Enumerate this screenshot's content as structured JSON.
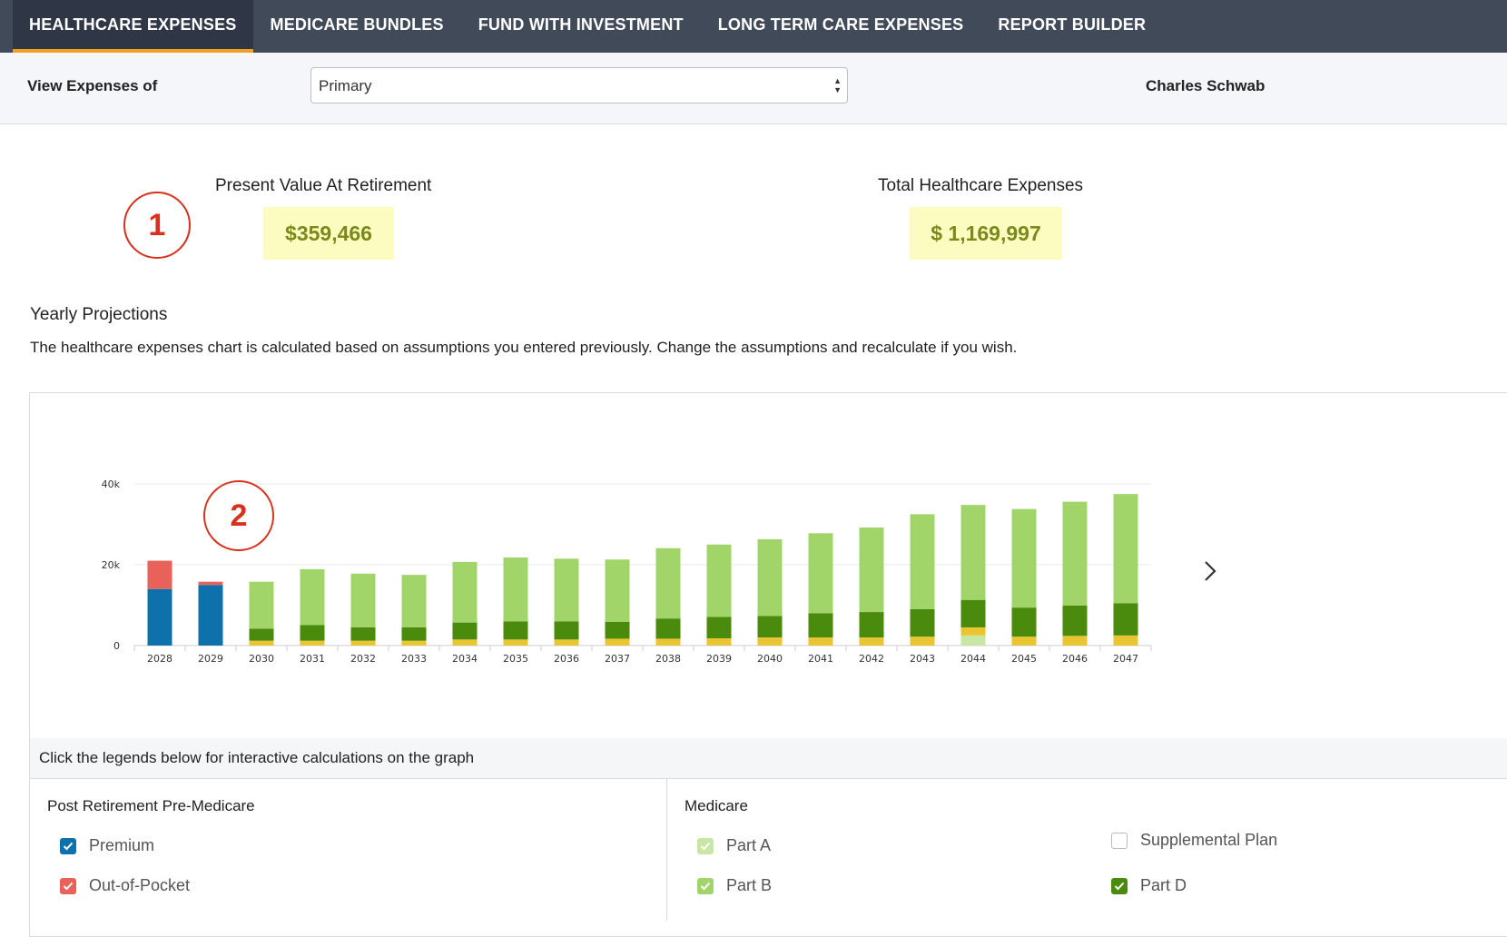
{
  "nav": {
    "tabs": [
      {
        "label": "HEALTHCARE EXPENSES",
        "active": true
      },
      {
        "label": "MEDICARE BUNDLES",
        "active": false
      },
      {
        "label": "FUND WITH INVESTMENT",
        "active": false
      },
      {
        "label": "LONG TERM CARE EXPENSES",
        "active": false
      },
      {
        "label": "REPORT BUILDER",
        "active": false
      }
    ]
  },
  "filter": {
    "label": "View Expenses of",
    "selected": "Primary",
    "company": "Charles Schwab"
  },
  "summary": {
    "badge1": "1",
    "badge2": "2",
    "present_value_title": "Present Value At Retirement",
    "present_value": "$359,466",
    "total_title": "Total Healthcare Expenses",
    "total_value": "$ 1,169,997"
  },
  "section": {
    "title": "Yearly Projections",
    "description": "The healthcare expenses chart is calculated based on assumptions you entered previously. Change the assumptions and recalculate if you wish."
  },
  "legend": {
    "hint": "Click the legends below for interactive calculations on the graph",
    "pre_medicare": {
      "title": "Post Retirement Pre-Medicare",
      "items": [
        {
          "label": "Premium",
          "checked": true,
          "color": "#0f71ab"
        },
        {
          "label": "Out-of-Pocket",
          "checked": true,
          "color": "#e8625a"
        }
      ]
    },
    "medicare": {
      "title": "Medicare",
      "items": [
        {
          "label": "Part A",
          "checked": true,
          "color": "#c8e6a4"
        },
        {
          "label": "Supplemental Plan",
          "checked": false,
          "color": "#e8c531"
        },
        {
          "label": "Part B",
          "checked": true,
          "color": "#a1d56a"
        },
        {
          "label": "Part D",
          "checked": true,
          "color": "#4a8a0c"
        }
      ]
    }
  },
  "chart_data": {
    "type": "bar",
    "stacked": true,
    "categories": [
      "2028",
      "2029",
      "2030",
      "2031",
      "2032",
      "2033",
      "2034",
      "2035",
      "2036",
      "2037",
      "2038",
      "2039",
      "2040",
      "2041",
      "2042",
      "2043",
      "2044",
      "2045",
      "2046",
      "2047"
    ],
    "yticks": [
      "0",
      "20k",
      "40k"
    ],
    "ylim": [
      0,
      40000
    ],
    "grid": true,
    "series": [
      {
        "name": "Premium",
        "color": "#0f71ab",
        "values": [
          14000,
          15000,
          0,
          0,
          0,
          0,
          0,
          0,
          0,
          0,
          0,
          0,
          0,
          0,
          0,
          0,
          0,
          0,
          0,
          0
        ]
      },
      {
        "name": "Out-of-Pocket",
        "color": "#e8625a",
        "values": [
          7000,
          800,
          0,
          0,
          0,
          0,
          0,
          0,
          0,
          0,
          0,
          0,
          0,
          0,
          0,
          0,
          0,
          0,
          0,
          0
        ]
      },
      {
        "name": "Part A",
        "color": "#c8e6a4",
        "values": [
          0,
          0,
          0,
          0,
          0,
          0,
          0,
          0,
          0,
          0,
          0,
          0,
          0,
          0,
          0,
          0,
          2500,
          0,
          0,
          0
        ]
      },
      {
        "name": "Supplemental Plan",
        "color": "#e8c531",
        "values": [
          0,
          0,
          1200,
          1200,
          1200,
          1200,
          1500,
          1500,
          1500,
          1700,
          1700,
          1800,
          2000,
          2000,
          2000,
          2200,
          2000,
          2200,
          2400,
          2500
        ]
      },
      {
        "name": "Part D",
        "color": "#4a8a0c",
        "values": [
          0,
          0,
          3000,
          3900,
          3300,
          3300,
          4200,
          4500,
          4500,
          4200,
          5000,
          5300,
          5300,
          6000,
          6300,
          6800,
          6800,
          7200,
          7500,
          8000
        ]
      },
      {
        "name": "Part B",
        "color": "#a1d56a",
        "values": [
          0,
          0,
          11600,
          13800,
          13300,
          13000,
          15000,
          15800,
          15500,
          15400,
          17400,
          17900,
          19000,
          19800,
          20900,
          23500,
          23500,
          24400,
          25700,
          27000
        ]
      }
    ]
  }
}
